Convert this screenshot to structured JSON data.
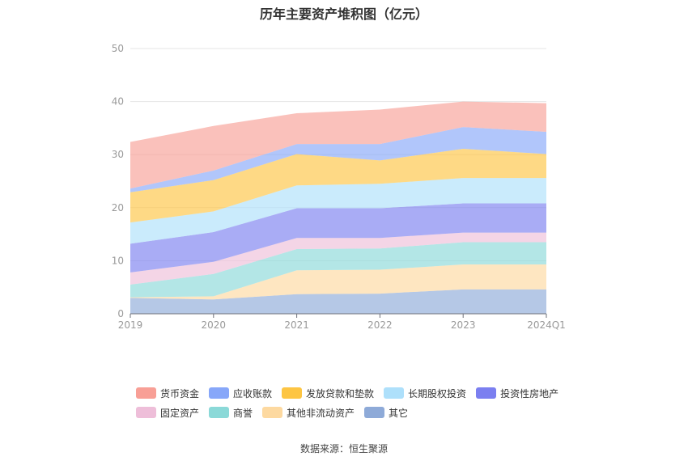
{
  "title": "历年主要资产堆积图（亿元）",
  "source": "数据来源：恒生聚源",
  "chart_data": {
    "type": "area",
    "stacked": true,
    "categories": [
      "2019",
      "2020",
      "2021",
      "2022",
      "2023",
      "2024Q1"
    ],
    "y_ticks": [
      "0",
      "10",
      "20",
      "30",
      "40",
      "50"
    ],
    "ylim": [
      0,
      50
    ],
    "grid": true,
    "legend_position": "bottom",
    "series": [
      {
        "name": "其它",
        "color": "#8eaad8",
        "values": [
          3.0,
          2.7,
          3.7,
          3.8,
          4.6,
          4.6
        ]
      },
      {
        "name": "其他非流动资产",
        "color": "#fdd9a0",
        "values": [
          0.1,
          0.6,
          4.5,
          4.5,
          4.7,
          4.7
        ]
      },
      {
        "name": "商誉",
        "color": "#8bd9d8",
        "values": [
          2.4,
          4.2,
          4.0,
          4.0,
          4.2,
          4.2
        ]
      },
      {
        "name": "固定资产",
        "color": "#eebed9",
        "values": [
          2.3,
          2.3,
          2.1,
          2.0,
          1.8,
          1.8
        ]
      },
      {
        "name": "投资性房地产",
        "color": "#7b7ff0",
        "values": [
          5.4,
          5.6,
          5.6,
          5.6,
          5.5,
          5.5
        ]
      },
      {
        "name": "长期股权投资",
        "color": "#aee0fb",
        "values": [
          4.0,
          3.9,
          4.3,
          4.6,
          4.8,
          4.8
        ]
      },
      {
        "name": "发放贷款和垫款",
        "color": "#fdc543",
        "values": [
          5.7,
          5.9,
          5.9,
          4.4,
          5.5,
          4.5
        ]
      },
      {
        "name": "应收账款",
        "color": "#87a7f9",
        "values": [
          0.7,
          1.8,
          1.9,
          3.1,
          4.1,
          4.2
        ]
      },
      {
        "name": "货币资金",
        "color": "#f89f96",
        "values": [
          8.8,
          8.4,
          5.8,
          6.5,
          4.8,
          5.4
        ]
      }
    ]
  },
  "legend_rows": [
    [
      {
        "label": "货币资金",
        "color": "#f89f96"
      },
      {
        "label": "应收账款",
        "color": "#87a7f9"
      },
      {
        "label": "发放贷款和垫款",
        "color": "#fdc543"
      },
      {
        "label": "长期股权投资",
        "color": "#aee0fb"
      },
      {
        "label": "投资性房地产",
        "color": "#7b7ff0"
      }
    ],
    [
      {
        "label": "固定资产",
        "color": "#eebed9"
      },
      {
        "label": "商誉",
        "color": "#8bd9d8"
      },
      {
        "label": "其他非流动资产",
        "color": "#fdd9a0"
      },
      {
        "label": "其它",
        "color": "#8eaad8"
      }
    ]
  ]
}
